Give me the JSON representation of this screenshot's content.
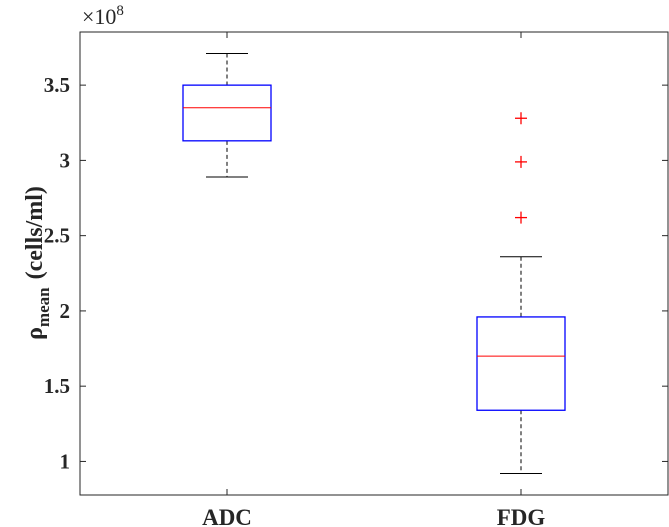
{
  "chart_data": {
    "type": "boxplot",
    "categories": [
      "ADC",
      "FDG"
    ],
    "ylabel_symbol": "ρ",
    "ylabel_subscript": "mean",
    "ylabel_unit": "(cells/ml)",
    "exponent_label": "×10",
    "exponent_power": "8",
    "ylim": [
      0.777,
      3.853
    ],
    "yticks": [
      1,
      1.5,
      2,
      2.5,
      3,
      3.5
    ],
    "ytick_labels": [
      "1",
      "1.5",
      "2",
      "2.5",
      "3",
      "3.5"
    ],
    "grid": false,
    "boxes": [
      {
        "category": "ADC",
        "whisker_low": 2.89,
        "q1": 3.13,
        "median": 3.35,
        "q3": 3.5,
        "whisker_high": 3.71,
        "outliers": []
      },
      {
        "category": "FDG",
        "whisker_low": 0.92,
        "q1": 1.34,
        "median": 1.7,
        "q3": 1.96,
        "whisker_high": 2.36,
        "outliers": [
          2.62,
          2.99,
          3.28
        ]
      }
    ],
    "colors": {
      "box": "#0000ff",
      "median": "#ff0000",
      "whisker": "#000000",
      "outlier": "#ff0000",
      "axis": "#262626"
    }
  }
}
